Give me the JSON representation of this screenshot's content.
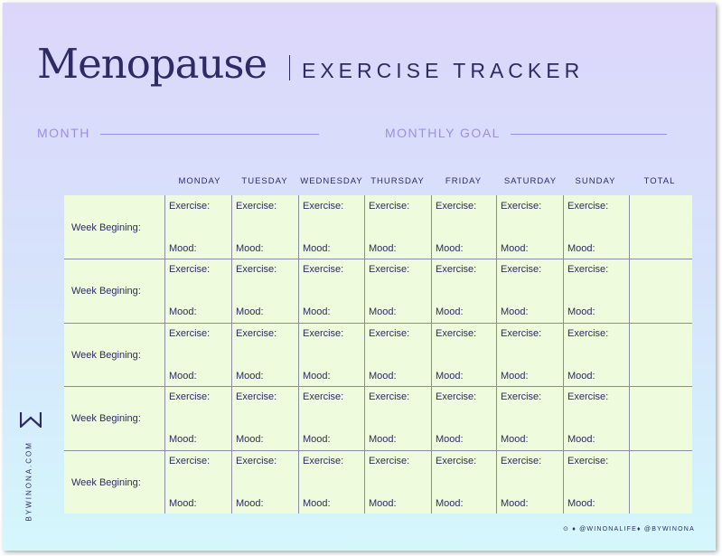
{
  "header": {
    "brand": "Menopause",
    "subtitle": "EXERCISE TRACKER"
  },
  "fields": {
    "month_label": "MONTH",
    "goal_label": "MONTHLY GOAL"
  },
  "table": {
    "columns": [
      "MONDAY",
      "TUESDAY",
      "WEDNESDAY",
      "THURSDAY",
      "FRIDAY",
      "SATURDAY",
      "SUNDAY",
      "TOTAL"
    ],
    "row_label": "Week Begining:",
    "row_count": 5,
    "exercise_label": "Exercise:",
    "mood_label": "Mood:"
  },
  "footer": {
    "logo_icon": "winona-w-logo-icon",
    "website": "BYWINONA.COM",
    "social_left": "⊙ ♦ @WINONALIFE",
    "social_right": "♦ @BYWINONA"
  },
  "colors": {
    "navy": "#2e2a63",
    "lavender": "#9b8fe6",
    "cell_green": "#eefbdc"
  }
}
